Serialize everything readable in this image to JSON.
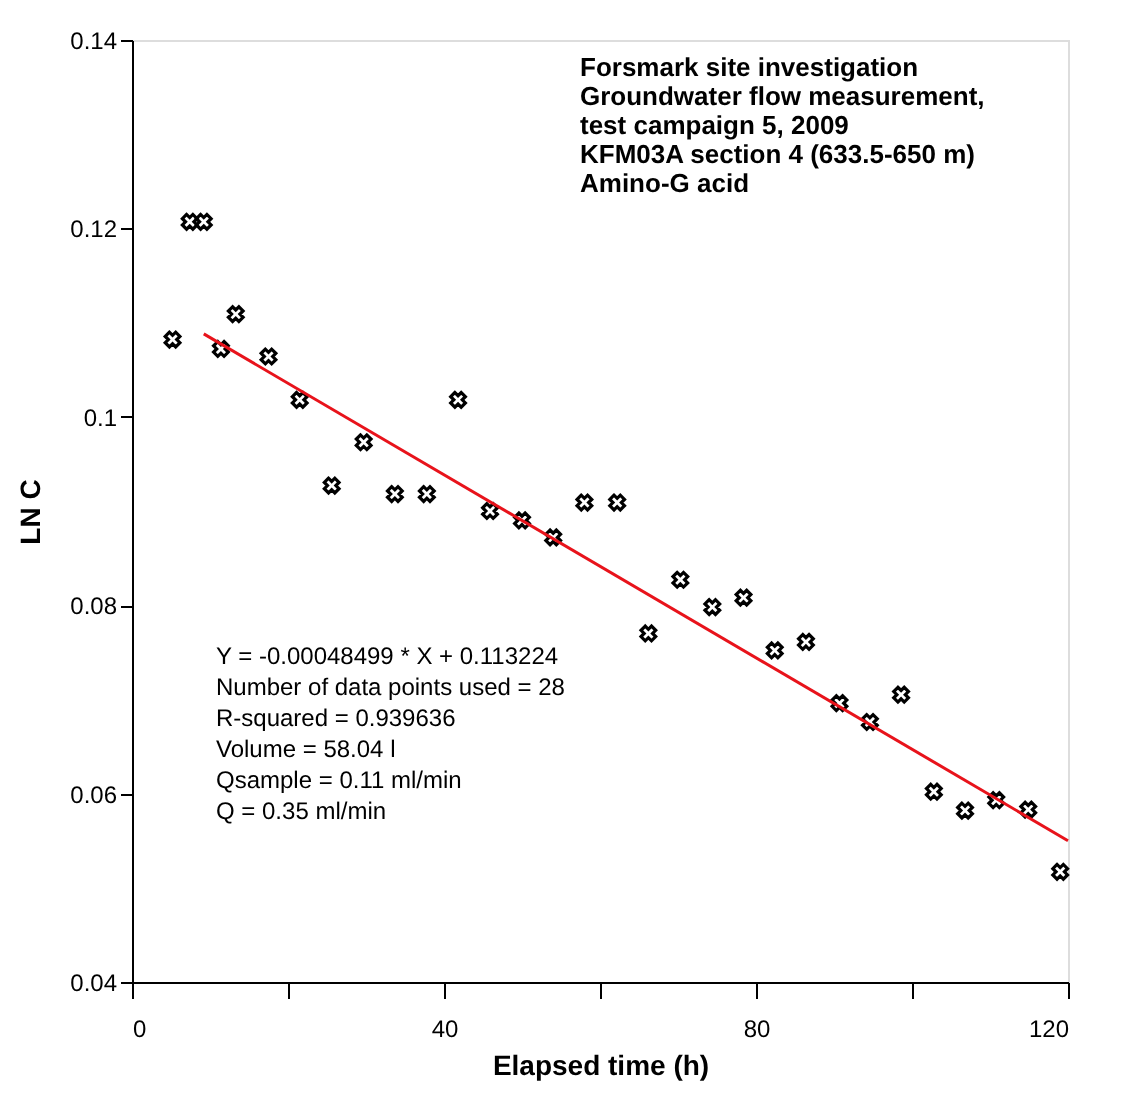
{
  "chart_data": {
    "type": "scatter",
    "title": "Forsmark site investigation\nGroundwater flow measurement,\ntest campaign 5, 2009\nKFM03A section 4 (633.5-650 m)\nAmino-G acid",
    "xlabel": "Elapsed time (h)",
    "ylabel": "LN C",
    "xlim": [
      0,
      120
    ],
    "xticks": [
      0,
      {
        "value": 20,
        "label": null
      },
      40,
      {
        "value": 60,
        "label": null
      },
      80,
      {
        "value": 100,
        "label": null
      },
      120
    ],
    "ylim": [
      0.04,
      0.14
    ],
    "yticks": [
      0.04,
      0.06,
      0.08,
      0.1,
      0.12,
      0.14
    ],
    "grid": false,
    "series": [
      {
        "color": "#000000",
        "marker": "cross",
        "x": [
          5.2,
          7.4,
          9.2,
          11.4,
          13.3,
          17.5,
          21.5,
          25.6,
          29.7,
          33.7,
          37.8,
          41.8,
          45.9,
          50,
          54,
          58,
          62.2,
          66.2,
          70.3,
          74.4,
          78.4,
          82.4,
          86.4,
          90.7,
          94.6,
          98.6,
          102.8,
          106.8,
          110.8,
          114.9,
          119
        ],
        "values": [
          0.1082,
          0.1207,
          0.1207,
          0.1072,
          0.1109,
          0.1064,
          0.1018,
          0.0927,
          0.0973,
          0.0918,
          0.0918,
          0.1018,
          0.09,
          0.089,
          0.0872,
          0.0909,
          0.0909,
          0.077,
          0.0827,
          0.0798,
          0.0808,
          0.0752,
          0.0761,
          0.0696,
          0.0676,
          0.0705,
          0.0602,
          0.0582,
          0.0593,
          0.0583,
          0.0517
        ]
      },
      {
        "type": "line",
        "color": "#e8131b",
        "line_style": "solid",
        "marker": "none",
        "x": [
          9.2,
          120
        ],
        "values": [
          0.1088,
          0.055
        ]
      }
    ],
    "annotations": [
      "Y = -0.00048499 * X + 0.113224",
      "Number of data points used = 28",
      "R-squared = 0.939636",
      "Volume = 58.04 l",
      "Qsample = 0.11 ml/min",
      "Q = 0.35 ml/min"
    ]
  }
}
